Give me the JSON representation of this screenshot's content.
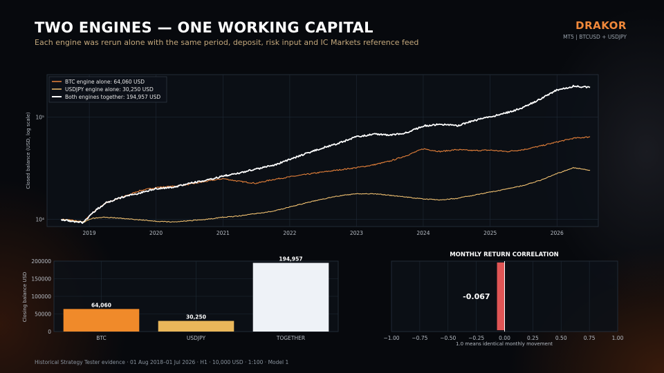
{
  "header": {
    "title": "TWO ENGINES — ONE WORKING CAPITAL",
    "subtitle": "Each engine was rerun alone with the same period, deposit, risk input and IC Markets reference feed",
    "brand": "DRAKOR",
    "brand_sub": "MT5  |  BTCUSD + USDJPY"
  },
  "footer": "Historical Strategy Tester evidence · 01 Aug 2018–01 Jul 2026 · H1 · 10,000 USD · 1:100 · Model 1",
  "colors": {
    "btc": "#e8823a",
    "usdjpy": "#f0c070",
    "together": "#ffffff",
    "corr_bar": "#e05555",
    "bar_btc": "#f08a2a",
    "bar_usdjpy": "#eab75a",
    "bar_together": "#eef2f7"
  },
  "chart_data": [
    {
      "type": "line",
      "ylabel": "Closed balance (USD, log scale)",
      "xlabel": "",
      "y_scale": "log",
      "ylim": [
        8500,
        260000
      ],
      "xlim": [
        "2018-05-15",
        "2026-08-15"
      ],
      "x_ticks": [
        "2019",
        "2020",
        "2021",
        "2022",
        "2023",
        "2024",
        "2025",
        "2026"
      ],
      "y_ticks": [
        {
          "value": 10000,
          "label": "10⁴"
        },
        {
          "value": 100000,
          "label": "10⁵"
        }
      ],
      "legend_position": "top-left",
      "grid": true,
      "series": [
        {
          "name": "BTC engine alone: 64,060 USD",
          "color_key": "btc",
          "x": [
            "2018-08-01",
            "2018-10-01",
            "2018-12-01",
            "2019-01-15",
            "2019-04-01",
            "2019-07-01",
            "2019-10-01",
            "2020-01-01",
            "2020-04-01",
            "2020-07-01",
            "2020-10-01",
            "2021-01-01",
            "2021-04-01",
            "2021-07-01",
            "2021-10-01",
            "2022-01-01",
            "2022-04-01",
            "2022-07-01",
            "2022-10-01",
            "2023-01-01",
            "2023-04-01",
            "2023-07-01",
            "2023-10-01",
            "2024-01-01",
            "2024-04-01",
            "2024-07-01",
            "2024-10-01",
            "2025-01-01",
            "2025-04-01",
            "2025-07-01",
            "2025-10-01",
            "2026-01-01",
            "2026-04-01",
            "2026-07-01"
          ],
          "values": [
            10000,
            9800,
            9400,
            11500,
            14500,
            16500,
            19000,
            20500,
            21000,
            22000,
            23500,
            25000,
            23500,
            22500,
            24500,
            26000,
            27500,
            29000,
            30500,
            32000,
            34000,
            37000,
            42000,
            49000,
            46000,
            48000,
            47000,
            47500,
            46000,
            48000,
            52000,
            57000,
            62000,
            64060
          ]
        },
        {
          "name": "USDJPY engine alone: 30,250 USD",
          "color_key": "usdjpy",
          "x": [
            "2018-08-01",
            "2018-10-01",
            "2018-12-01",
            "2019-01-15",
            "2019-04-01",
            "2019-07-01",
            "2019-10-01",
            "2020-01-01",
            "2020-04-01",
            "2020-07-01",
            "2020-10-01",
            "2021-01-01",
            "2021-04-01",
            "2021-07-01",
            "2021-10-01",
            "2022-01-01",
            "2022-04-01",
            "2022-07-01",
            "2022-10-01",
            "2023-01-01",
            "2023-04-01",
            "2023-07-01",
            "2023-10-01",
            "2024-01-01",
            "2024-04-01",
            "2024-07-01",
            "2024-10-01",
            "2025-01-01",
            "2025-04-01",
            "2025-07-01",
            "2025-10-01",
            "2026-01-01",
            "2026-04-01",
            "2026-07-01"
          ],
          "values": [
            10000,
            9700,
            9400,
            10200,
            10500,
            10200,
            9900,
            9600,
            9400,
            9700,
            10000,
            10500,
            10800,
            11400,
            12000,
            13200,
            14500,
            15800,
            17000,
            17800,
            17800,
            17200,
            16500,
            15800,
            15500,
            16000,
            17200,
            18500,
            19800,
            21500,
            24000,
            28000,
            32000,
            30250
          ]
        },
        {
          "name": "Both engines together: 194,957 USD",
          "color_key": "together",
          "x": [
            "2018-08-01",
            "2018-10-01",
            "2018-12-01",
            "2019-01-15",
            "2019-04-01",
            "2019-07-01",
            "2019-10-01",
            "2020-01-01",
            "2020-04-01",
            "2020-07-01",
            "2020-10-01",
            "2021-01-01",
            "2021-04-01",
            "2021-07-01",
            "2021-10-01",
            "2022-01-01",
            "2022-04-01",
            "2022-07-01",
            "2022-10-01",
            "2023-01-01",
            "2023-04-01",
            "2023-07-01",
            "2023-10-01",
            "2024-01-01",
            "2024-04-01",
            "2024-07-01",
            "2024-10-01",
            "2025-01-01",
            "2025-04-01",
            "2025-07-01",
            "2025-10-01",
            "2026-01-01",
            "2026-04-01",
            "2026-07-01"
          ],
          "values": [
            10000,
            9500,
            9300,
            11500,
            14500,
            16500,
            18000,
            20000,
            20500,
            22500,
            24000,
            26500,
            28500,
            31000,
            33500,
            38500,
            44000,
            50000,
            56000,
            64000,
            68000,
            67000,
            70000,
            82000,
            85000,
            82000,
            92000,
            100000,
            110000,
            124000,
            150000,
            184000,
            200000,
            194957
          ]
        }
      ]
    },
    {
      "type": "bar",
      "ylabel": "Closing balance USD",
      "categories": [
        "BTC",
        "USDJPY",
        "TOGETHER"
      ],
      "values": [
        64060,
        30250,
        194957
      ],
      "value_labels": [
        "64,060",
        "30,250",
        "194,957"
      ],
      "color_keys": [
        "bar_btc",
        "bar_usdjpy",
        "bar_together"
      ],
      "ylim": [
        0,
        200000
      ],
      "y_ticks": [
        0,
        50000,
        100000,
        150000,
        200000
      ],
      "grid": true
    },
    {
      "type": "bar",
      "orientation": "horizontal",
      "title": "MONTHLY RETURN CORRELATION",
      "xlabel": "1.0 means identical monthly movement",
      "values": [
        -0.067
      ],
      "value_labels": [
        "-0.067"
      ],
      "xlim": [
        -1.0,
        1.0
      ],
      "x_ticks": [
        "−1.00",
        "−0.75",
        "−0.50",
        "−0.25",
        "0.00",
        "0.25",
        "0.50",
        "0.75",
        "1.00"
      ],
      "x_tick_values": [
        -1,
        -0.75,
        -0.5,
        -0.25,
        0,
        0.25,
        0.5,
        0.75,
        1
      ],
      "grid": true
    }
  ]
}
